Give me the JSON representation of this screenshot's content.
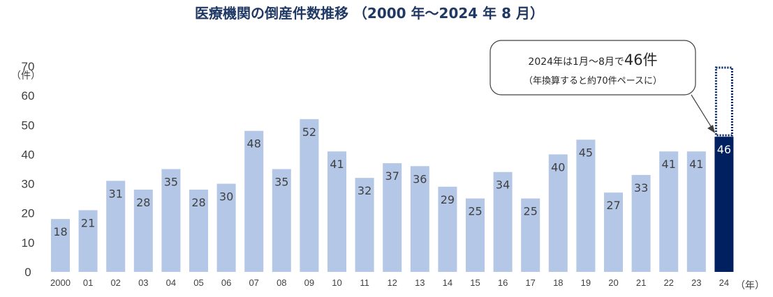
{
  "chart_data": {
    "type": "bar",
    "title": "医療機関の倒産件数推移 （2000 年～2024 年 8 月）",
    "y_unit": "（件）",
    "x_unit": "（年）",
    "ylim": [
      0,
      70
    ],
    "y_ticks": [
      0,
      10,
      20,
      30,
      40,
      50,
      60,
      70
    ],
    "grid": false,
    "categories": [
      "2000",
      "01",
      "02",
      "03",
      "04",
      "05",
      "06",
      "07",
      "08",
      "09",
      "10",
      "11",
      "12",
      "13",
      "14",
      "15",
      "16",
      "17",
      "18",
      "19",
      "20",
      "21",
      "22",
      "23",
      "24"
    ],
    "values": [
      18,
      21,
      31,
      28,
      35,
      28,
      30,
      48,
      35,
      52,
      41,
      32,
      37,
      36,
      29,
      25,
      34,
      25,
      40,
      45,
      27,
      33,
      41,
      41,
      46
    ],
    "highlight_index": 24,
    "projected_value": 70,
    "colors": {
      "bar": "#b4c7e7",
      "highlight_bar": "#002060",
      "label_dark": "#404040",
      "label_light": "#ffffff",
      "title": "#1f3864"
    },
    "callout": {
      "line1_prefix": "2024年は1月～8月で",
      "line1_emphasis": "46件",
      "line2": "（年換算すると約70件ペースに）"
    }
  }
}
